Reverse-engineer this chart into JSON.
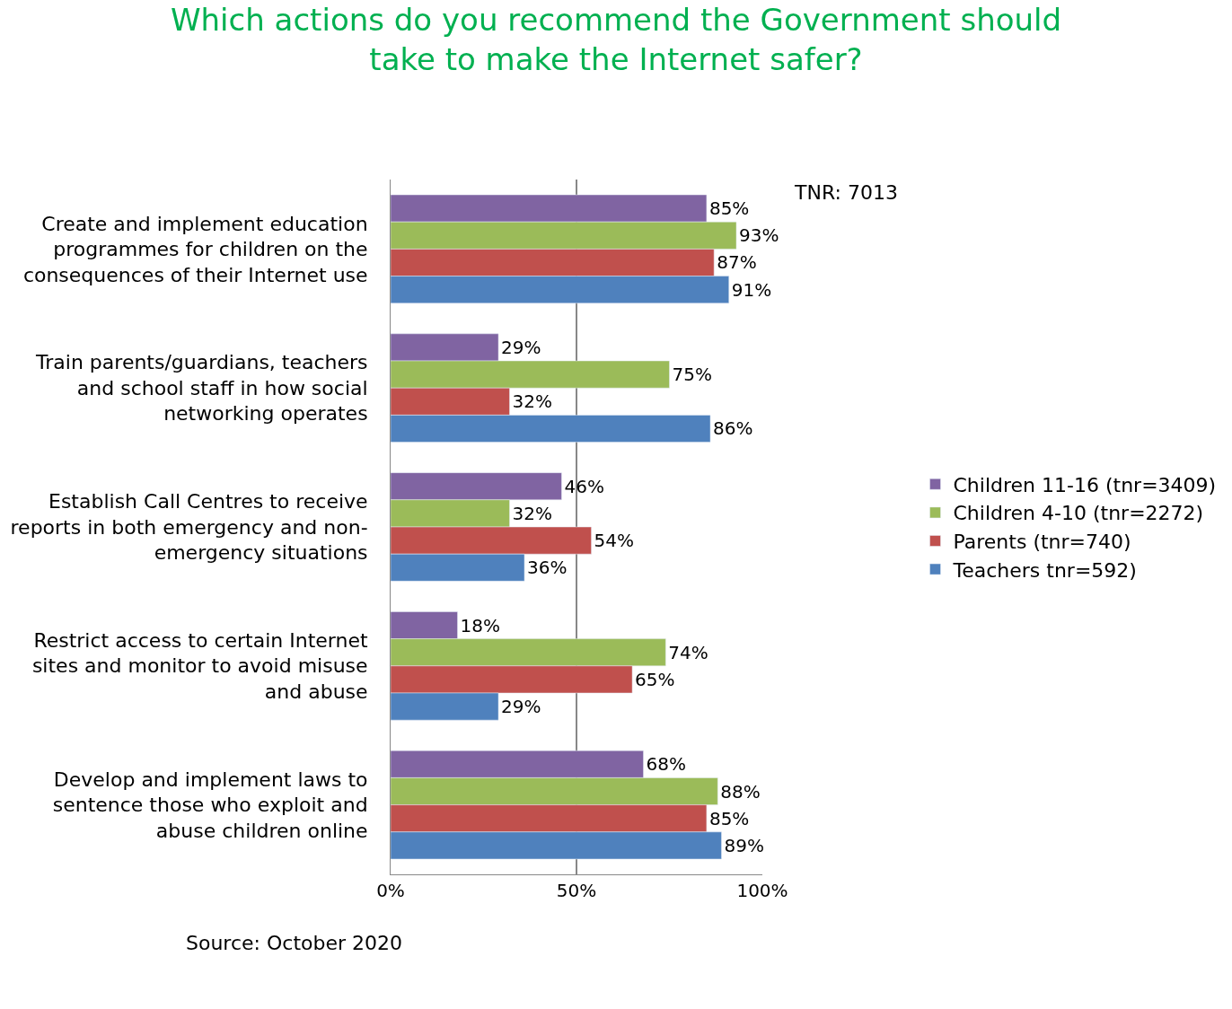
{
  "chart_data": {
    "type": "bar",
    "orientation": "horizontal",
    "title": "Which actions do you recommend the Government should\ntake to make the Internet safer?",
    "categories": [
      "Create and implement education\nprogrammes for children on the\nconsequences of their Internet use",
      "Train parents/guardians, teachers\nand school staff in how social\nnetworking operates",
      "Establish Call Centres to receive\nreports in both emergency and non-\nemergency situations",
      "Restrict access to certain Internet\nsites and monitor to avoid misuse\nand abuse",
      "Develop and implement laws to\nsentence those who exploit and\nabuse children online"
    ],
    "series": [
      {
        "name": "Children 11-16 (tnr=3409)",
        "color": "#8064a2",
        "values": [
          85,
          29,
          46,
          18,
          68
        ],
        "value_labels": [
          "85%",
          "29%",
          "46%",
          "18%",
          "68%"
        ]
      },
      {
        "name": "Children 4-10 (tnr=2272)",
        "color": "#9bbb59",
        "values": [
          93,
          75,
          32,
          74,
          88
        ],
        "value_labels": [
          "93%",
          "75%",
          "32%",
          "74%",
          "88%"
        ]
      },
      {
        "name": "Parents (tnr=740)",
        "color": "#c0504d",
        "values": [
          87,
          32,
          54,
          65,
          85
        ],
        "value_labels": [
          "87%",
          "32%",
          "54%",
          "65%",
          "85%"
        ]
      },
      {
        "name": "Teachers tnr=592)",
        "color": "#4f81bd",
        "values": [
          91,
          86,
          36,
          29,
          89
        ],
        "value_labels": [
          "91%",
          "86%",
          "36%",
          "29%",
          "89%"
        ]
      }
    ],
    "xlim": [
      0,
      100
    ],
    "xticks": [
      {
        "value": 0,
        "label": "0%"
      },
      {
        "value": 50,
        "label": "50%"
      },
      {
        "value": 100,
        "label": "100%"
      }
    ],
    "grid": "x",
    "legend": "right",
    "annotations": [
      "TNR: 7013",
      "Source: October 2020"
    ]
  }
}
